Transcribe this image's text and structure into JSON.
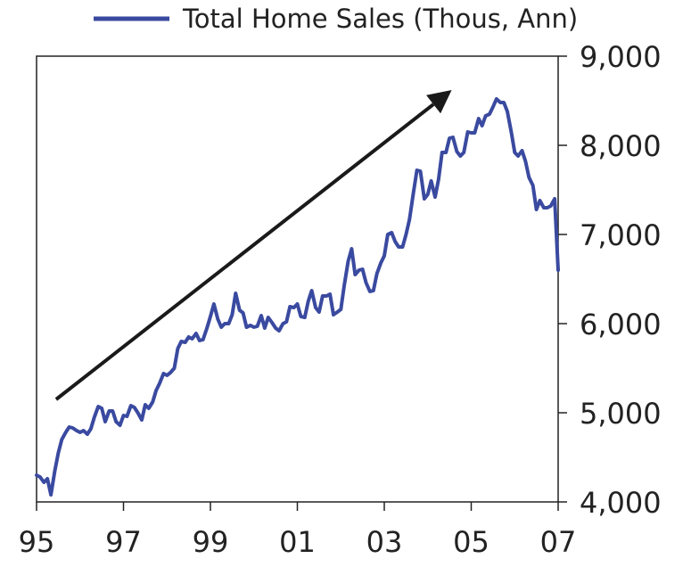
{
  "chart_data": {
    "type": "line",
    "title": "",
    "xlabel": "",
    "ylabel": "",
    "x_range": [
      1995.0,
      2007.0
    ],
    "ylim": [
      4000,
      9000
    ],
    "x_ticks": [
      {
        "value": 1995,
        "label": "95"
      },
      {
        "value": 1997,
        "label": "97"
      },
      {
        "value": 1999,
        "label": "99"
      },
      {
        "value": 2001,
        "label": "01"
      },
      {
        "value": 2003,
        "label": "03"
      },
      {
        "value": 2005,
        "label": "05"
      },
      {
        "value": 2007,
        "label": "07"
      }
    ],
    "y_ticks": [
      {
        "value": 4000,
        "label": "4,000"
      },
      {
        "value": 5000,
        "label": "5,000"
      },
      {
        "value": 6000,
        "label": "6,000"
      },
      {
        "value": 7000,
        "label": "7,000"
      },
      {
        "value": 8000,
        "label": "8,000"
      },
      {
        "value": 9000,
        "label": "9,000"
      }
    ],
    "legend_position": "top",
    "grid": false,
    "series": [
      {
        "name": "Total Home Sales (Thous, Ann)",
        "color": "#3a4aa0",
        "points": [
          [
            1995.0,
            4300
          ],
          [
            1995.08,
            4280
          ],
          [
            1995.17,
            4220
          ],
          [
            1995.25,
            4260
          ],
          [
            1995.33,
            4080
          ],
          [
            1995.42,
            4350
          ],
          [
            1995.5,
            4550
          ],
          [
            1995.58,
            4700
          ],
          [
            1995.67,
            4780
          ],
          [
            1995.75,
            4840
          ],
          [
            1995.83,
            4830
          ],
          [
            1995.92,
            4800
          ],
          [
            1996.0,
            4780
          ],
          [
            1996.08,
            4800
          ],
          [
            1996.17,
            4760
          ],
          [
            1996.25,
            4820
          ],
          [
            1996.33,
            4950
          ],
          [
            1996.42,
            5070
          ],
          [
            1996.5,
            5050
          ],
          [
            1996.58,
            4900
          ],
          [
            1996.67,
            5020
          ],
          [
            1996.75,
            5020
          ],
          [
            1996.83,
            4900
          ],
          [
            1996.92,
            4860
          ],
          [
            1997.0,
            4970
          ],
          [
            1997.08,
            4960
          ],
          [
            1997.17,
            5080
          ],
          [
            1997.25,
            5060
          ],
          [
            1997.33,
            5000
          ],
          [
            1997.42,
            4920
          ],
          [
            1997.5,
            5090
          ],
          [
            1997.58,
            5050
          ],
          [
            1997.67,
            5120
          ],
          [
            1997.75,
            5250
          ],
          [
            1997.83,
            5330
          ],
          [
            1997.92,
            5440
          ],
          [
            1998.0,
            5420
          ],
          [
            1998.08,
            5450
          ],
          [
            1998.17,
            5500
          ],
          [
            1998.25,
            5720
          ],
          [
            1998.33,
            5800
          ],
          [
            1998.42,
            5790
          ],
          [
            1998.5,
            5850
          ],
          [
            1998.58,
            5830
          ],
          [
            1998.67,
            5890
          ],
          [
            1998.75,
            5810
          ],
          [
            1998.83,
            5820
          ],
          [
            1998.92,
            5950
          ],
          [
            1999.0,
            6080
          ],
          [
            1999.08,
            6220
          ],
          [
            1999.17,
            6050
          ],
          [
            1999.25,
            5960
          ],
          [
            1999.33,
            6000
          ],
          [
            1999.42,
            6000
          ],
          [
            1999.5,
            6100
          ],
          [
            1999.58,
            6340
          ],
          [
            1999.67,
            6150
          ],
          [
            1999.75,
            6120
          ],
          [
            1999.83,
            5960
          ],
          [
            1999.92,
            5980
          ],
          [
            2000.0,
            5960
          ],
          [
            2000.08,
            5970
          ],
          [
            2000.17,
            6090
          ],
          [
            2000.25,
            5950
          ],
          [
            2000.33,
            6070
          ],
          [
            2000.42,
            6010
          ],
          [
            2000.5,
            5950
          ],
          [
            2000.58,
            5920
          ],
          [
            2000.67,
            6000
          ],
          [
            2000.75,
            6020
          ],
          [
            2000.83,
            6190
          ],
          [
            2000.92,
            6180
          ],
          [
            2001.0,
            6220
          ],
          [
            2001.08,
            6080
          ],
          [
            2001.17,
            6070
          ],
          [
            2001.25,
            6250
          ],
          [
            2001.33,
            6370
          ],
          [
            2001.42,
            6180
          ],
          [
            2001.5,
            6130
          ],
          [
            2001.58,
            6310
          ],
          [
            2001.67,
            6310
          ],
          [
            2001.75,
            6330
          ],
          [
            2001.83,
            6100
          ],
          [
            2001.92,
            6130
          ],
          [
            2002.0,
            6160
          ],
          [
            2002.08,
            6430
          ],
          [
            2002.17,
            6700
          ],
          [
            2002.25,
            6840
          ],
          [
            2002.33,
            6550
          ],
          [
            2002.42,
            6600
          ],
          [
            2002.5,
            6610
          ],
          [
            2002.58,
            6460
          ],
          [
            2002.67,
            6360
          ],
          [
            2002.75,
            6370
          ],
          [
            2002.83,
            6560
          ],
          [
            2002.92,
            6680
          ],
          [
            2003.0,
            6760
          ],
          [
            2003.08,
            7000
          ],
          [
            2003.17,
            7020
          ],
          [
            2003.25,
            6920
          ],
          [
            2003.33,
            6860
          ],
          [
            2003.42,
            6860
          ],
          [
            2003.5,
            7000
          ],
          [
            2003.58,
            7170
          ],
          [
            2003.67,
            7470
          ],
          [
            2003.75,
            7720
          ],
          [
            2003.83,
            7710
          ],
          [
            2003.92,
            7400
          ],
          [
            2004.0,
            7450
          ],
          [
            2004.08,
            7600
          ],
          [
            2004.17,
            7420
          ],
          [
            2004.25,
            7620
          ],
          [
            2004.33,
            7920
          ],
          [
            2004.42,
            7920
          ],
          [
            2004.5,
            8080
          ],
          [
            2004.58,
            8090
          ],
          [
            2004.67,
            7930
          ],
          [
            2004.75,
            7880
          ],
          [
            2004.83,
            7920
          ],
          [
            2004.92,
            8150
          ],
          [
            2005.0,
            8140
          ],
          [
            2005.08,
            8140
          ],
          [
            2005.17,
            8300
          ],
          [
            2005.25,
            8220
          ],
          [
            2005.33,
            8330
          ],
          [
            2005.42,
            8350
          ],
          [
            2005.5,
            8430
          ],
          [
            2005.58,
            8520
          ],
          [
            2005.67,
            8480
          ],
          [
            2005.75,
            8480
          ],
          [
            2005.83,
            8380
          ],
          [
            2005.92,
            8150
          ],
          [
            2006.0,
            7920
          ],
          [
            2006.08,
            7880
          ],
          [
            2006.17,
            7940
          ],
          [
            2006.25,
            7820
          ],
          [
            2006.33,
            7640
          ],
          [
            2006.42,
            7550
          ],
          [
            2006.5,
            7280
          ],
          [
            2006.58,
            7380
          ],
          [
            2006.67,
            7300
          ],
          [
            2006.75,
            7300
          ],
          [
            2006.83,
            7320
          ],
          [
            2006.92,
            7400
          ],
          [
            2007.0,
            6600
          ]
        ]
      }
    ],
    "annotations": [
      {
        "type": "arrow",
        "from": [
          1995.45,
          5150
        ],
        "to": [
          2004.55,
          8620
        ],
        "color": "#1a1a1a"
      }
    ]
  }
}
